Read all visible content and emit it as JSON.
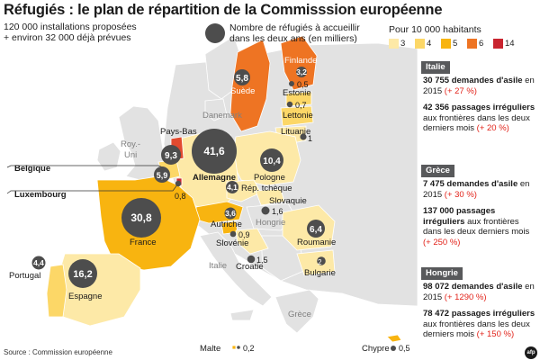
{
  "title": "Réfugiés : le plan de répartition de la Commisssion européenne",
  "subtitle_line1": "120 000 installations proposées",
  "subtitle_line2": "+ environ 32 000 déjà prévues",
  "legend": {
    "circle_text_line1": "Nombre de réfugiés à accueillir",
    "circle_text_line2": "dans les deux ans (en milliers)",
    "scale_title": "Pour 10 000 habitants",
    "scale": [
      {
        "label": "3",
        "color": "#fde9a7"
      },
      {
        "label": "4",
        "color": "#fcd767"
      },
      {
        "label": "5",
        "color": "#f8b410"
      },
      {
        "label": "6",
        "color": "#ee7423"
      },
      {
        "label": "14",
        "color": "#c9242f"
      }
    ]
  },
  "countries": [
    {
      "name": "Suède",
      "value": "5,8"
    },
    {
      "name": "Finlande",
      "value": "3,2"
    },
    {
      "name": "Estonie",
      "value": "0,5"
    },
    {
      "name": "Lettonie",
      "value": "0,7"
    },
    {
      "name": "Lituanie",
      "value": "1"
    },
    {
      "name": "Pays-Bas",
      "value": "9,3"
    },
    {
      "name": "Belgique",
      "value": "5,9"
    },
    {
      "name": "Luxembourg",
      "value": "0,8"
    },
    {
      "name": "Allemagne",
      "value": "41,6"
    },
    {
      "name": "Pologne",
      "value": "10,4"
    },
    {
      "name": "Rép. tchèque",
      "value": "4,1"
    },
    {
      "name": "Slovaquie",
      "value": "1,6"
    },
    {
      "name": "Autriche",
      "value": "3,6"
    },
    {
      "name": "Slovénie",
      "value": "0,9"
    },
    {
      "name": "Croatie",
      "value": "1,5"
    },
    {
      "name": "Roumanie",
      "value": "6,4"
    },
    {
      "name": "Bulgarie",
      "value": "2"
    },
    {
      "name": "France",
      "value": "30,8"
    },
    {
      "name": "Espagne",
      "value": "16,2"
    },
    {
      "name": "Portugal",
      "value": "4,4"
    },
    {
      "name": "Malte",
      "value": "0,2"
    },
    {
      "name": "Chypre",
      "value": "0,5"
    }
  ],
  "other_labels": {
    "danemark": "Danemark",
    "roy_uni_1": "Roy.-",
    "roy_uni_2": "Uni",
    "hongrie": "Hongrie",
    "italie": "Italie",
    "grece": "Grèce"
  },
  "panel": {
    "italie": {
      "tag": "Italie",
      "a_bold": "30 755 demandes d'asile",
      "a_text": "en 2015",
      "a_pct": "(+ 27 %)",
      "b_bold": "42 356 passages irréguliers",
      "b_text": "aux frontières dans les deux derniers mois",
      "b_pct": "(+ 20 %)"
    },
    "grece": {
      "tag": "Grèce",
      "a_bold": "7 475 demandes d'asile",
      "a_text": "en 2015",
      "a_pct": "(+ 30 %)",
      "b_bold": "137 000 passages irréguliers",
      "b_text": "aux frontières dans les deux derniers mois",
      "b_pct": "(+ 250 %)"
    },
    "hongrie": {
      "tag": "Hongrie",
      "a_bold": "98 072 demandes d'asile",
      "a_text": "en 2015",
      "a_pct": "(+ 1290 %)",
      "b_bold": "78 472 passages irréguliers",
      "b_text": "aux frontières dans les deux derniers mois",
      "b_pct": "(+ 150 %)"
    }
  },
  "source": "Source : Commission européenne",
  "logo_text": "afp",
  "colors": {
    "land": "#e3e3e3",
    "sea": "#ffffff",
    "circle": "#4d4d4d",
    "accent_red": "#e2231a"
  }
}
